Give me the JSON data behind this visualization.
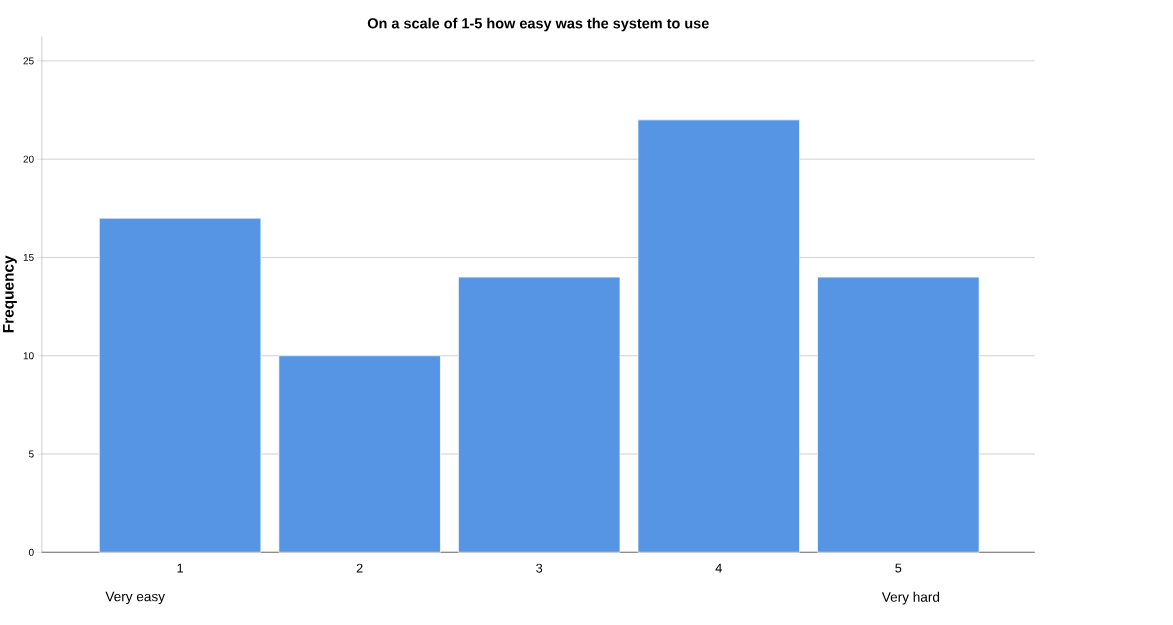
{
  "chart_data": {
    "type": "bar",
    "title": "On a scale of 1-5 how easy was the system to use",
    "ylabel": "Frequency",
    "categories": [
      "1",
      "2",
      "3",
      "4",
      "5"
    ],
    "values": [
      17,
      10,
      14,
      22,
      14
    ],
    "color": "#5595e3",
    "ylim": [
      0,
      26.25
    ],
    "yticks": [
      0,
      5,
      10,
      15,
      20,
      25
    ],
    "grid": "y",
    "annotations": [
      "Very easy",
      "Very hard"
    ]
  }
}
